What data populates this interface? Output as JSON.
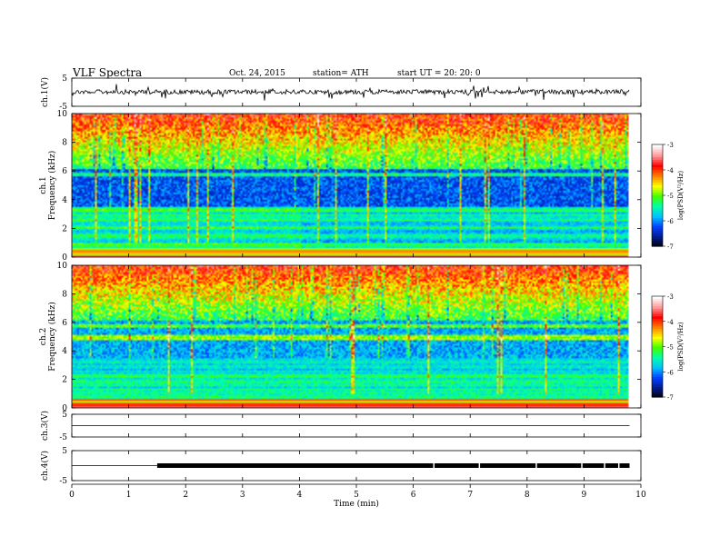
{
  "header": {
    "title": "VLF  Spectra",
    "date": "Oct. 24, 2015",
    "station": "station= ATH",
    "start": "start  UT  =    20: 20: 0"
  },
  "chart_data": {
    "type": "heatmap",
    "title": "VLF  Spectra",
    "x_axis": {
      "label": "Time  (min)",
      "range": [
        0,
        10
      ],
      "ticks": [
        "0",
        "1",
        "2",
        "3",
        "4",
        "5",
        "6",
        "7",
        "8",
        "9",
        "10"
      ]
    },
    "panels": [
      {
        "name": "ch.1",
        "type": "line",
        "ylabel": "ch.1(V)",
        "ylim": [
          -5,
          5
        ],
        "yticks": [
          "5",
          "-5"
        ],
        "description_level": 0.1
      },
      {
        "name": "ch.1",
        "type": "heatmap",
        "ylabel_channel": "ch.1",
        "ylabel": "Frequency (kHz)",
        "ylim": [
          0,
          10
        ],
        "yticks": [
          "0",
          "2",
          "4",
          "6",
          "8",
          "10"
        ],
        "colorbar": {
          "label": "log(PSD(V²/Hz)",
          "ticks": [
            "-3",
            "-4",
            "-5",
            "-6",
            "-7"
          ],
          "range": [
            -7,
            -3
          ]
        }
      },
      {
        "name": "ch.2",
        "type": "heatmap",
        "ylabel_channel": "ch.2",
        "ylabel": "Frequency (kHz)",
        "ylim": [
          0,
          10
        ],
        "yticks": [
          "0",
          "2",
          "4",
          "6",
          "8",
          "10"
        ],
        "colorbar": {
          "label": "log(PSD(V²/Hz)",
          "ticks": [
            "-3",
            "-4",
            "-5",
            "-6",
            "-7"
          ],
          "range": [
            -7,
            -3
          ]
        }
      },
      {
        "name": "ch.3",
        "type": "line",
        "ylabel": "ch.3(V)",
        "ylim": [
          -5,
          5
        ],
        "yticks": [
          "5",
          "-5"
        ]
      },
      {
        "name": "ch.4",
        "type": "line",
        "ylabel": "ch.4(V)",
        "ylim": [
          -5,
          5
        ],
        "yticks": [
          "5",
          "-5"
        ],
        "step_time_min": 1.5
      }
    ],
    "colormap": [
      "#000000",
      "#001a8c",
      "#0040ff",
      "#00bfff",
      "#00ffaa",
      "#40ff00",
      "#ffff00",
      "#ff8000",
      "#ff0000",
      "#ff9999",
      "#ffffff"
    ]
  }
}
